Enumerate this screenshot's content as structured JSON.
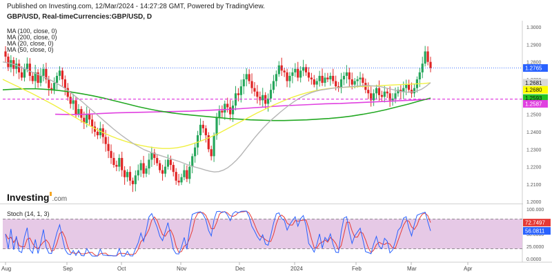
{
  "header": {
    "published": "Published on Investing.com, 12/Mar/2024 - 14:27:28 GMT, Powered by TradingView.",
    "symbol": "GBP/USD, Real-timeCurrencies:GBP/USD, D"
  },
  "indicators": [
    {
      "label": "MA (100, close, 0)",
      "color": "#22a822"
    },
    {
      "label": "MA (200, close, 0)",
      "color": "#e040e0"
    },
    {
      "label": "MA (20, close, 0)",
      "color": "#b5b5b5"
    },
    {
      "label": "MA (50, close, 0)",
      "color": "#f0f040"
    }
  ],
  "logo": {
    "name": "Investing",
    "suffix": ".com"
  },
  "stoch_label": "Stoch (14, 1, 3)",
  "chart_data": {
    "type": "candlestick",
    "price_axis_ticks": [
      "1.3000",
      "1.2900",
      "1.2800",
      "1.2700",
      "1.2600",
      "1.2500",
      "1.2400",
      "1.2300",
      "1.2200",
      "1.2100",
      "1.2000"
    ],
    "price_ylim": [
      1.1985,
      1.302
    ],
    "stoch_axis_ticks": [
      "100.000",
      "75.0000",
      "50.0000",
      "25.0000",
      "0.0000"
    ],
    "stoch_ylim": [
      0,
      100
    ],
    "x_labels": [
      "Aug",
      "Sep",
      "Oct",
      "Nov",
      "Dec",
      "2024",
      "Feb",
      "Mar",
      "Apr"
    ],
    "price_tags": [
      {
        "value": "1.2765",
        "price": 1.2765,
        "color": "#2962ff",
        "text_color": "#ffffff"
      },
      {
        "value": "1.2681",
        "price": 1.2681,
        "color": "#d9d9d9",
        "text_color": "#111111"
      },
      {
        "value": "1.2680",
        "price": 1.264,
        "color": "#ffff00",
        "text_color": "#111111"
      },
      {
        "value": "1.2593",
        "price": 1.2593,
        "color": "#22c422",
        "text_color": "#111111"
      },
      {
        "value": "1.2587",
        "price": 1.256,
        "color": "#e040e0",
        "text_color": "#ffffff"
      }
    ],
    "stoch_tags": [
      {
        "value": "72.7497",
        "level": 72.7497,
        "color": "#e53935",
        "text_color": "#ffffff"
      },
      {
        "value": "56.0811",
        "level": 56.0811,
        "color": "#2962ff",
        "text_color": "#ffffff"
      }
    ],
    "support_level": 1.2587,
    "current_level": 1.2765,
    "stoch_bands": [
      20,
      80
    ],
    "candles_close": [
      1.283,
      1.277,
      1.281,
      1.276,
      1.279,
      1.274,
      1.271,
      1.276,
      1.279,
      1.272,
      1.269,
      1.274,
      1.268,
      1.272,
      1.276,
      1.27,
      1.265,
      1.264,
      1.268,
      1.272,
      1.275,
      1.27,
      1.265,
      1.26,
      1.256,
      1.258,
      1.25,
      1.253,
      1.248,
      1.245,
      1.25,
      1.247,
      1.243,
      1.24,
      1.238,
      1.242,
      1.237,
      1.233,
      1.229,
      1.225,
      1.221,
      1.22,
      1.225,
      1.218,
      1.214,
      1.217,
      1.212,
      1.21,
      1.215,
      1.218,
      1.222,
      1.216,
      1.219,
      1.224,
      1.228,
      1.225,
      1.222,
      1.218,
      1.216,
      1.22,
      1.224,
      1.221,
      1.217,
      1.212,
      1.211,
      1.214,
      1.218,
      1.213,
      1.22,
      1.226,
      1.231,
      1.238,
      1.244,
      1.242,
      1.238,
      1.23,
      1.226,
      1.238,
      1.248,
      1.252,
      1.251,
      1.256,
      1.254,
      1.25,
      1.255,
      1.262,
      1.261,
      1.266,
      1.27,
      1.273,
      1.269,
      1.265,
      1.263,
      1.26,
      1.258,
      1.261,
      1.256,
      1.259,
      1.264,
      1.269,
      1.273,
      1.278,
      1.275,
      1.274,
      1.269,
      1.272,
      1.274,
      1.276,
      1.271,
      1.275,
      1.277,
      1.274,
      1.271,
      1.27,
      1.267,
      1.269,
      1.272,
      1.268,
      1.271,
      1.27,
      1.272,
      1.269,
      1.266,
      1.265,
      1.27,
      1.272,
      1.274,
      1.27,
      1.267,
      1.269,
      1.27,
      1.271,
      1.268,
      1.264,
      1.262,
      1.258,
      1.262,
      1.265,
      1.261,
      1.26,
      1.263,
      1.262,
      1.258,
      1.259,
      1.262,
      1.264,
      1.263,
      1.265,
      1.267,
      1.264,
      1.262,
      1.265,
      1.27,
      1.274,
      1.279,
      1.286,
      1.28,
      1.2765
    ],
    "ma20": [
      1.28,
      1.2795,
      1.279,
      1.278,
      1.277,
      1.276,
      1.2748,
      1.2738,
      1.2728,
      1.2718,
      1.2706,
      1.2694,
      1.268,
      1.2666,
      1.265,
      1.2632,
      1.2612,
      1.2592,
      1.2572,
      1.255,
      1.2528,
      1.2506,
      1.2484,
      1.2462,
      1.244,
      1.2418,
      1.2398,
      1.2378,
      1.236,
      1.2342,
      1.2326,
      1.2312,
      1.2298,
      1.2288,
      1.2278,
      1.227,
      1.2262,
      1.2254,
      1.2246,
      1.2238,
      1.223,
      1.222,
      1.221,
      1.2202,
      1.2195,
      1.2188,
      1.218,
      1.2174,
      1.217,
      1.2172,
      1.218,
      1.2194,
      1.2214,
      1.2238,
      1.2266,
      1.2298,
      1.233,
      1.2362,
      1.2392,
      1.242,
      1.2446,
      1.247,
      1.2492,
      1.2514,
      1.2534,
      1.2554,
      1.2572,
      1.2588,
      1.2602,
      1.2614,
      1.2624,
      1.2632,
      1.2638,
      1.2642,
      1.2646,
      1.265,
      1.2652,
      1.2654,
      1.2656,
      1.2658,
      1.266,
      1.2662,
      1.2664,
      1.2664,
      1.2662,
      1.266,
      1.2656,
      1.265,
      1.2644,
      1.2638,
      1.2632,
      1.2628,
      1.2626,
      1.2628,
      1.2634,
      1.2644,
      1.266,
      1.2681
    ],
    "ma50": [
      1.27,
      1.268,
      1.266,
      1.264,
      1.262,
      1.2598,
      1.2576,
      1.2554,
      1.253,
      1.2506,
      1.2482,
      1.2458,
      1.2434,
      1.2412,
      1.2392,
      1.2374,
      1.2358,
      1.2344,
      1.2332,
      1.2322,
      1.2314,
      1.2308,
      1.2304,
      1.2304,
      1.2308,
      1.2316,
      1.2328,
      1.2342,
      1.2358,
      1.2376,
      1.2396,
      1.2418,
      1.244,
      1.2462,
      1.2484,
      1.2506,
      1.2526,
      1.2546,
      1.2564,
      1.2582,
      1.2598,
      1.2612,
      1.2624,
      1.2634,
      1.2642,
      1.2648,
      1.2652,
      1.2654,
      1.2656,
      1.2658,
      1.266,
      1.2662,
      1.2664,
      1.2666,
      1.2668,
      1.267,
      1.2672,
      1.2674,
      1.2676,
      1.268
    ],
    "ma100": [
      1.264,
      1.2644,
      1.2646,
      1.2646,
      1.2642,
      1.2636,
      1.2628,
      1.2618,
      1.2606,
      1.2592,
      1.2576,
      1.256,
      1.2544,
      1.253,
      1.2518,
      1.2508,
      1.25,
      1.2494,
      1.2488,
      1.2482,
      1.2476,
      1.2472,
      1.2468,
      1.2466,
      1.2464,
      1.2464,
      1.2466,
      1.2468,
      1.2472,
      1.2476,
      1.2482,
      1.249,
      1.25,
      1.2512,
      1.2526,
      1.2542,
      1.2558,
      1.2576,
      1.2593
    ],
    "ma200": [
      1.25,
      1.2498,
      1.25,
      1.2504,
      1.2508,
      1.251,
      1.2512,
      1.2514,
      1.2516,
      1.2518,
      1.2522,
      1.2526,
      1.253,
      1.2536,
      1.2542,
      1.2548,
      1.2552,
      1.2556,
      1.256,
      1.2562,
      1.2566,
      1.257,
      1.2574,
      1.2578,
      1.2582,
      1.2587
    ]
  }
}
